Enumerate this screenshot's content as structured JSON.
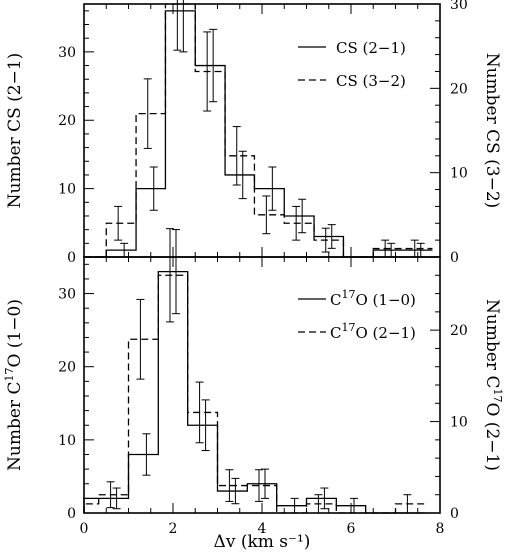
{
  "chart_data": [
    {
      "type": "histogram",
      "panel": "top",
      "xlim": [
        0,
        8
      ],
      "ylim_left": [
        0,
        37
      ],
      "ylim_right": [
        0,
        30
      ],
      "left_yticks": [
        0,
        10,
        20,
        30
      ],
      "right_yticks": [
        0,
        10,
        20,
        30
      ],
      "ylabel_left": "Number CS (2−1)",
      "ylabel_right": "Number CS (3−2)",
      "bin_edges": [
        0,
        0.5,
        1.17,
        1.83,
        2.5,
        3.17,
        3.83,
        4.5,
        5.17,
        5.83,
        6.5,
        7.17,
        7.83
      ],
      "series": [
        {
          "name": "CS (2−1)",
          "style": "solid",
          "axis": "left",
          "values": [
            0,
            1,
            10,
            36,
            28,
            12,
            10,
            6,
            3,
            0,
            1,
            1
          ],
          "error_bars": [
            false,
            true,
            true,
            true,
            true,
            true,
            true,
            true,
            true,
            false,
            true,
            true
          ]
        },
        {
          "name": "CS (3−2)",
          "style": "dashed",
          "axis": "right",
          "values": [
            0,
            4,
            17,
            30,
            22,
            12,
            5,
            4,
            2,
            0,
            1,
            1
          ],
          "error_bars": [
            false,
            true,
            true,
            true,
            true,
            true,
            true,
            true,
            true,
            false,
            true,
            true
          ]
        }
      ]
    },
    {
      "type": "histogram",
      "panel": "bottom",
      "xlim": [
        0,
        8
      ],
      "ylim_left": [
        0,
        35
      ],
      "ylim_right": [
        0,
        28
      ],
      "left_yticks": [
        0,
        10,
        20,
        30
      ],
      "right_yticks": [
        0,
        10,
        20
      ],
      "xticks": [
        0,
        2,
        4,
        6,
        8
      ],
      "xlabel": "Δv (km s⁻¹)",
      "ylabel_left_parts": [
        "Number C",
        "17",
        "O (1−0)"
      ],
      "ylabel_right_parts": [
        "Number C",
        "17",
        "O (2−1)"
      ],
      "bin_edges": [
        0,
        0.33,
        1.0,
        1.67,
        2.33,
        3.0,
        3.67,
        4.33,
        5.0,
        5.67,
        6.33,
        7.0,
        7.67
      ],
      "series": [
        {
          "name_parts": [
            "C",
            "17",
            "O (1−0)"
          ],
          "style": "solid",
          "axis": "left",
          "values": [
            2,
            2,
            8,
            33,
            12,
            3,
            4,
            1,
            2,
            1,
            0,
            0
          ],
          "error_bars": [
            false,
            true,
            true,
            true,
            true,
            true,
            true,
            true,
            true,
            true,
            false,
            false
          ]
        },
        {
          "name_parts": [
            "C",
            "17",
            "O (2−1)"
          ],
          "style": "dashed",
          "axis": "right",
          "values": [
            1,
            2,
            19,
            26,
            11,
            3,
            3,
            0,
            1,
            0,
            0,
            1
          ],
          "error_bars": [
            false,
            true,
            true,
            true,
            true,
            true,
            true,
            false,
            true,
            false,
            false,
            true
          ]
        }
      ]
    }
  ]
}
